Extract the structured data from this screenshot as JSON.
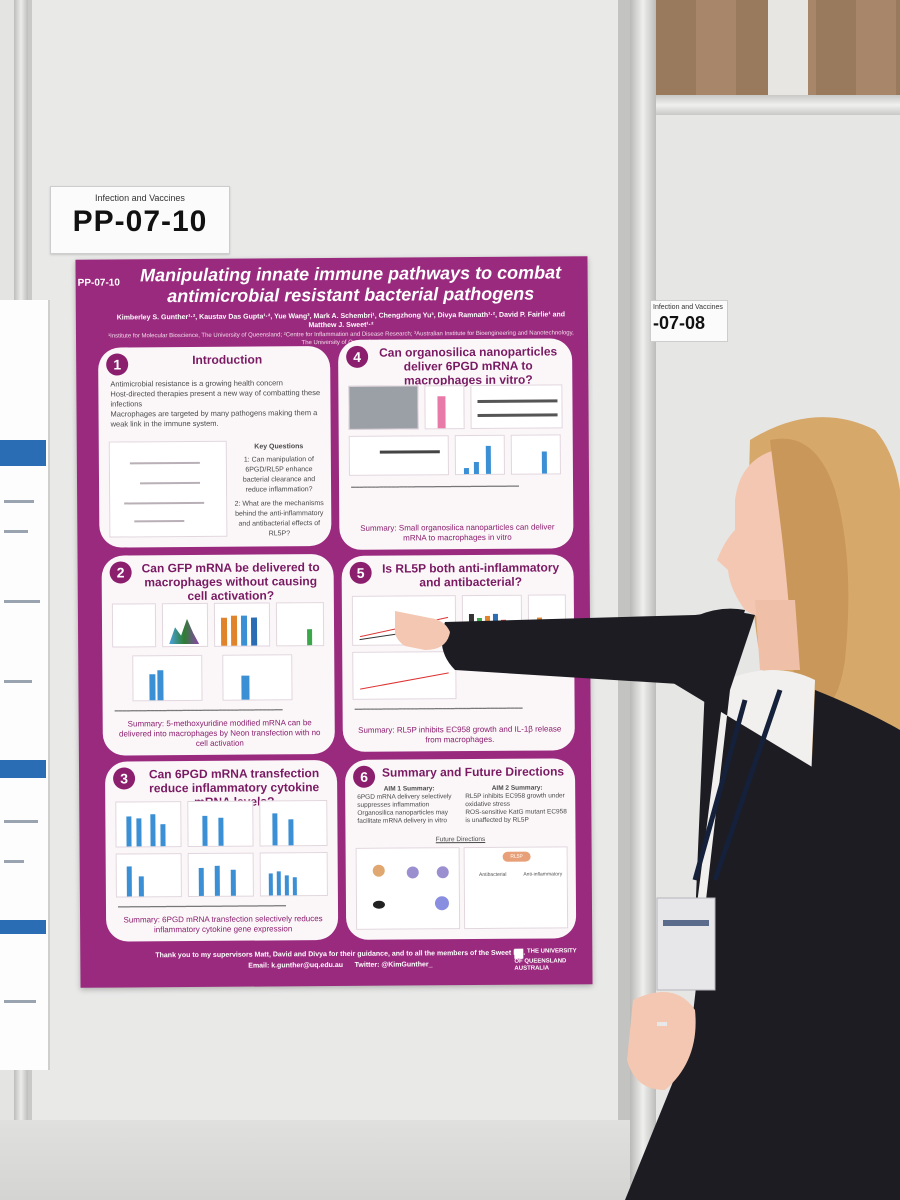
{
  "scene": {
    "board_labels": {
      "main": {
        "category": "Infection and Vaccines",
        "code": "PP-07-10"
      },
      "neighbour": {
        "category": "Infection and Vaccines",
        "code": "-07-08"
      }
    }
  },
  "poster": {
    "code": "PP-07-10",
    "title": "Manipulating innate immune pathways to combat antimicrobial resistant bacterial pathogens",
    "authors": "Kimberley S. Gunther¹·², Kaustav Das Gupta¹·², Yue Wang³, Mark A. Schembri¹, Chengzhong Yu³, Divya Ramnath¹·², David P. Fairlie¹ and Matthew J. Sweet¹·²",
    "affiliations": "¹Institute for Molecular Bioscience, The University of Queensland; ²Centre for Inflammation and Disease Research; ³Australian Institute for Bioengineering and Nanotechnology, The University of Queensland",
    "sections": [
      {
        "number": "1",
        "title": "Introduction",
        "bullets": [
          "Antimicrobial resistance is a growing health concern",
          "Host-directed therapies present a new way of combatting these infections",
          "Macrophages are targeted by many pathogens making them a weak link in the immune system."
        ],
        "key_questions_title": "Key Questions",
        "questions": [
          "1: Can manipulation of 6PGD/RL5P enhance bacterial clearance and reduce inflammation?",
          "2: What are the mechanisms behind the anti-inflammatory and antibacterial effects of RL5P?"
        ]
      },
      {
        "number": "2",
        "title": "Can GFP mRNA be delivered to macrophages without causing cell activation?",
        "summary": "Summary: 5-methoxyuridine modified mRNA can be delivered into macrophages by Neon transfection with no cell activation"
      },
      {
        "number": "3",
        "title": "Can 6PGD mRNA transfection reduce inflammatory cytokine mRNA levels?",
        "summary": "Summary: 6PGD mRNA transfection selectively reduces inflammatory cytokine gene expression"
      },
      {
        "number": "4",
        "title": "Can organosilica nanoparticles deliver 6PGD mRNA to macrophages in vitro?",
        "summary": "Summary: Small organosilica nanoparticles can deliver mRNA to macrophages in vitro"
      },
      {
        "number": "5",
        "title": "Is RL5P both anti-inflammatory and antibacterial?",
        "summary": "Summary: RL5P inhibits EC958 growth and IL-1β release from macrophages."
      },
      {
        "number": "6",
        "title": "Summary and Future Directions",
        "aim1_title": "AIM 1 Summary:",
        "aim1_points": [
          "6PGD mRNA delivery selectively suppresses inflammation",
          "Organosilica nanoparticles may facilitate mRNA delivery in vitro"
        ],
        "aim2_title": "AIM 2 Summary:",
        "aim2_points": [
          "RL5P inhibits EC958 growth under oxidative stress",
          "ROS-sensitive KatG mutant EC958 is unaffected by RL5P"
        ],
        "future_title": "Future Directions",
        "future_nodes": [
          "RL5P",
          "Antibacterial",
          "Anti-inflammatory"
        ]
      }
    ],
    "thanks": "Thank you to my supervisors Matt, David and Divya for their guidance, and to all the members of the Sweet lab.",
    "email": "Email: k.gunther@uq.edu.au",
    "twitter": "Twitter: @KimGunther_",
    "logo_text": "THE UNIVERSITY OF QUEENSLAND AUSTRALIA"
  },
  "colors": {
    "poster_purple": "#9a2a7e",
    "panel_bg": "#fbf7f9",
    "accent_dark": "#8b1f6e",
    "blazer": "#1c1c22",
    "hair": "#d6a86a"
  }
}
